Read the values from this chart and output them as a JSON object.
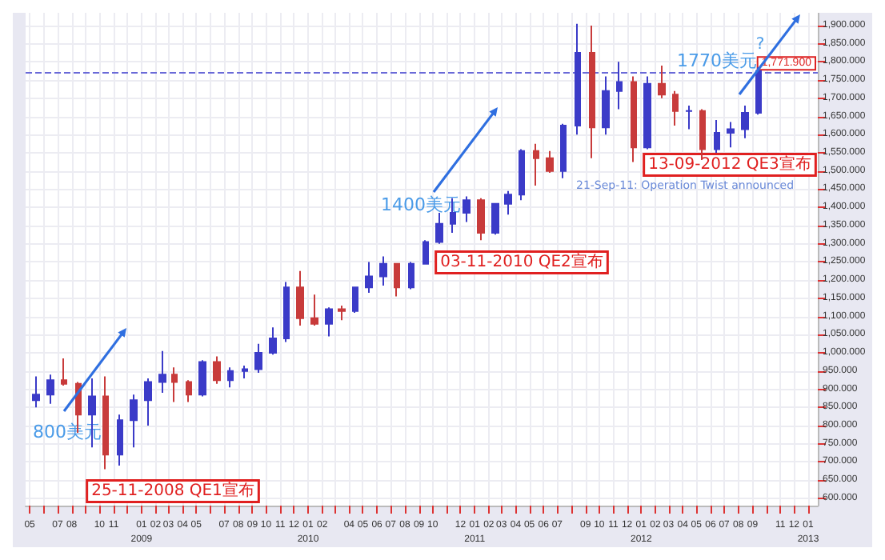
{
  "chart_data": {
    "type": "candlestick",
    "x": [
      "2008-05-15",
      "2008-06-15",
      "2008-07-15",
      "2008-08-15",
      "2008-09-15",
      "2008-10-15",
      "2008-11-15",
      "2008-12-15",
      "2009-01-15",
      "2009-02-15",
      "2009-03-15",
      "2009-04-15",
      "2009-05-15",
      "2009-06-15",
      "2009-07-15",
      "2009-08-15",
      "2009-09-15",
      "2009-10-15",
      "2009-11-15",
      "2009-12-15",
      "2010-01-15",
      "2010-02-15",
      "2010-03-15",
      "2010-04-15",
      "2010-05-15",
      "2010-06-15",
      "2010-07-15",
      "2010-08-15",
      "2010-09-15",
      "2010-10-15",
      "2010-11-15",
      "2010-12-15",
      "2011-01-15",
      "2011-02-15",
      "2011-03-15",
      "2011-04-15",
      "2011-05-15",
      "2011-06-15",
      "2011-07-15",
      "2011-08-15",
      "2011-09-15",
      "2011-10-15",
      "2011-11-15",
      "2011-12-15",
      "2012-01-15",
      "2012-02-15",
      "2012-03-15",
      "2012-04-15",
      "2012-05-15",
      "2012-06-15",
      "2012-07-15",
      "2012-08-15",
      "2012-09-15"
    ],
    "ohlc": [
      [
        870,
        935,
        850,
        885
      ],
      [
        885,
        940,
        860,
        925
      ],
      [
        925,
        985,
        910,
        915
      ],
      [
        915,
        920,
        780,
        830
      ],
      [
        830,
        930,
        740,
        880
      ],
      [
        880,
        935,
        680,
        720
      ],
      [
        720,
        830,
        690,
        815
      ],
      [
        815,
        885,
        740,
        870
      ],
      [
        870,
        930,
        800,
        920
      ],
      [
        920,
        1005,
        890,
        940
      ],
      [
        940,
        960,
        865,
        920
      ],
      [
        920,
        925,
        865,
        885
      ],
      [
        885,
        980,
        880,
        975
      ],
      [
        975,
        990,
        915,
        925
      ],
      [
        925,
        960,
        905,
        950
      ],
      [
        950,
        965,
        930,
        955
      ],
      [
        955,
        1025,
        945,
        1000
      ],
      [
        1000,
        1070,
        995,
        1040
      ],
      [
        1040,
        1195,
        1030,
        1180
      ],
      [
        1180,
        1225,
        1075,
        1095
      ],
      [
        1095,
        1160,
        1075,
        1080
      ],
      [
        1080,
        1125,
        1045,
        1120
      ],
      [
        1120,
        1130,
        1090,
        1115
      ],
      [
        1115,
        1180,
        1110,
        1180
      ],
      [
        1180,
        1250,
        1165,
        1210
      ],
      [
        1210,
        1265,
        1185,
        1245
      ],
      [
        1245,
        1245,
        1155,
        1180
      ],
      [
        1180,
        1250,
        1175,
        1245
      ],
      [
        1245,
        1310,
        1245,
        1305
      ],
      [
        1305,
        1385,
        1300,
        1355
      ],
      [
        1355,
        1425,
        1330,
        1385
      ],
      [
        1385,
        1430,
        1360,
        1420
      ],
      [
        1420,
        1425,
        1310,
        1330
      ],
      [
        1330,
        1410,
        1325,
        1410
      ],
      [
        1410,
        1445,
        1380,
        1435
      ],
      [
        1435,
        1560,
        1420,
        1555
      ],
      [
        1555,
        1575,
        1460,
        1535
      ],
      [
        1535,
        1555,
        1495,
        1500
      ],
      [
        1500,
        1630,
        1480,
        1625
      ],
      [
        1625,
        1905,
        1600,
        1825
      ],
      [
        1825,
        1900,
        1535,
        1620
      ],
      [
        1620,
        1760,
        1600,
        1720
      ],
      [
        1720,
        1800,
        1670,
        1745
      ],
      [
        1745,
        1760,
        1525,
        1565
      ],
      [
        1565,
        1760,
        1560,
        1740
      ],
      [
        1740,
        1790,
        1700,
        1710
      ],
      [
        1710,
        1720,
        1625,
        1665
      ],
      [
        1665,
        1680,
        1615,
        1665
      ],
      [
        1665,
        1670,
        1530,
        1560
      ],
      [
        1560,
        1640,
        1550,
        1605
      ],
      [
        1605,
        1635,
        1565,
        1615
      ],
      [
        1615,
        1680,
        1590,
        1660
      ],
      [
        1660,
        1785,
        1655,
        1775
      ]
    ],
    "colors": [
      "#3b3bc8",
      "#3b3bc8",
      "#c83b3b",
      "#c83b3b",
      "#3b3bc8",
      "#c83b3b",
      "#3b3bc8",
      "#3b3bc8",
      "#3b3bc8",
      "#3b3bc8",
      "#c83b3b",
      "#c83b3b",
      "#3b3bc8",
      "#c83b3b",
      "#3b3bc8",
      "#3b3bc8",
      "#3b3bc8",
      "#3b3bc8",
      "#3b3bc8",
      "#c83b3b",
      "#c83b3b",
      "#3b3bc8",
      "#c83b3b",
      "#3b3bc8",
      "#3b3bc8",
      "#3b3bc8",
      "#c83b3b",
      "#3b3bc8",
      "#3b3bc8",
      "#3b3bc8",
      "#3b3bc8",
      "#3b3bc8",
      "#c83b3b",
      "#3b3bc8",
      "#3b3bc8",
      "#3b3bc8",
      "#c83b3b",
      "#c83b3b",
      "#3b3bc8",
      "#3b3bc8",
      "#c83b3b",
      "#3b3bc8",
      "#3b3bc8",
      "#c83b3b",
      "#3b3bc8",
      "#c83b3b",
      "#c83b3b",
      "#3b3bc8",
      "#c83b3b",
      "#3b3bc8",
      "#3b3bc8",
      "#3b3bc8",
      "#3b3bc8"
    ],
    "xlim": [
      "2008-04-22",
      "2013-01-22"
    ],
    "xticks": [
      {
        "value": "2008-05-01",
        "label": "05"
      },
      {
        "value": "2008-06-01",
        "label": null
      },
      {
        "value": "2008-07-01",
        "label": "07"
      },
      {
        "value": "2008-08-01",
        "label": "08"
      },
      {
        "value": "2008-09-01",
        "label": null
      },
      {
        "value": "2008-10-01",
        "label": "10"
      },
      {
        "value": "2008-11-01",
        "label": "11"
      },
      {
        "value": "2008-12-01",
        "label": null
      },
      {
        "value": "2009-01-01",
        "label": "01\n2009"
      },
      {
        "value": "2009-02-01",
        "label": "02"
      },
      {
        "value": "2009-03-01",
        "label": "03"
      },
      {
        "value": "2009-04-01",
        "label": "04"
      },
      {
        "value": "2009-05-01",
        "label": "05"
      },
      {
        "value": "2009-06-01",
        "label": null
      },
      {
        "value": "2009-07-01",
        "label": "07"
      },
      {
        "value": "2009-08-01",
        "label": "08"
      },
      {
        "value": "2009-09-01",
        "label": "09"
      },
      {
        "value": "2009-10-01",
        "label": "10"
      },
      {
        "value": "2009-11-01",
        "label": "11"
      },
      {
        "value": "2009-12-01",
        "label": "12"
      },
      {
        "value": "2010-01-01",
        "label": "01\n2010"
      },
      {
        "value": "2010-02-01",
        "label": "02"
      },
      {
        "value": "2010-03-01",
        "label": null
      },
      {
        "value": "2010-04-01",
        "label": "04"
      },
      {
        "value": "2010-05-01",
        "label": "05"
      },
      {
        "value": "2010-06-01",
        "label": "06"
      },
      {
        "value": "2010-07-01",
        "label": "07"
      },
      {
        "value": "2010-08-01",
        "label": "08"
      },
      {
        "value": "2010-09-01",
        "label": "09"
      },
      {
        "value": "2010-10-01",
        "label": "10"
      },
      {
        "value": "2010-11-01",
        "label": null
      },
      {
        "value": "2010-12-01",
        "label": "12"
      },
      {
        "value": "2011-01-01",
        "label": "01\n2011"
      },
      {
        "value": "2011-02-01",
        "label": "02"
      },
      {
        "value": "2011-03-01",
        "label": "03"
      },
      {
        "value": "2011-04-01",
        "label": "04"
      },
      {
        "value": "2011-05-01",
        "label": "05"
      },
      {
        "value": "2011-06-01",
        "label": "06"
      },
      {
        "value": "2011-07-01",
        "label": "07"
      },
      {
        "value": "2011-08-01",
        "label": null
      },
      {
        "value": "2011-09-01",
        "label": "09"
      },
      {
        "value": "2011-10-01",
        "label": "10"
      },
      {
        "value": "2011-11-01",
        "label": "11"
      },
      {
        "value": "2011-12-01",
        "label": "12"
      },
      {
        "value": "2012-01-01",
        "label": "01\n2012"
      },
      {
        "value": "2012-02-01",
        "label": "02"
      },
      {
        "value": "2012-03-01",
        "label": "03"
      },
      {
        "value": "2012-04-01",
        "label": "04"
      },
      {
        "value": "2012-05-01",
        "label": "05"
      },
      {
        "value": "2012-06-01",
        "label": "06"
      },
      {
        "value": "2012-07-01",
        "label": "07"
      },
      {
        "value": "2012-08-01",
        "label": "08"
      },
      {
        "value": "2012-09-01",
        "label": "09"
      },
      {
        "value": "2012-10-01",
        "label": null
      },
      {
        "value": "2012-11-01",
        "label": "11"
      },
      {
        "value": "2012-12-01",
        "label": "12"
      },
      {
        "value": "2013-01-01",
        "label": "01\n2013"
      }
    ],
    "ylim": [
      580,
      1935
    ],
    "yticks": [
      {
        "value": 600,
        "label": "600.000"
      },
      {
        "value": 650,
        "label": "650.000"
      },
      {
        "value": 700,
        "label": "700.000"
      },
      {
        "value": 750,
        "label": "750.000"
      },
      {
        "value": 800,
        "label": "800.000"
      },
      {
        "value": 850,
        "label": "850.000"
      },
      {
        "value": 900,
        "label": "900.000"
      },
      {
        "value": 950,
        "label": "950.000"
      },
      {
        "value": 1000,
        "label": "1,000.000"
      },
      {
        "value": 1050,
        "label": "1,050.000"
      },
      {
        "value": 1100,
        "label": "1,100.000"
      },
      {
        "value": 1150,
        "label": "1,150.000"
      },
      {
        "value": 1200,
        "label": "1,200.000"
      },
      {
        "value": 1250,
        "label": "1,250.000"
      },
      {
        "value": 1300,
        "label": "1,300.000"
      },
      {
        "value": 1350,
        "label": "1,350.000"
      },
      {
        "value": 1400,
        "label": "1,400.000"
      },
      {
        "value": 1450,
        "label": "1,450.000"
      },
      {
        "value": 1500,
        "label": "1,500.000"
      },
      {
        "value": 1550,
        "label": "1,550.000"
      },
      {
        "value": 1600,
        "label": "1,600.000"
      },
      {
        "value": 1650,
        "label": "1,650.000"
      },
      {
        "value": 1700,
        "label": "1,700.000"
      },
      {
        "value": 1750,
        "label": "1,750.000"
      },
      {
        "value": 1800,
        "label": "1,800.000"
      },
      {
        "value": 1850,
        "label": "1,850.000"
      },
      {
        "value": 1900,
        "label": "1,900.000"
      }
    ],
    "grid": true,
    "ref_lines": [
      {
        "axis": "y",
        "value": 1771.9,
        "label": "1,771.900",
        "color": "#6a6ad8",
        "line_style": "dashed"
      }
    ],
    "annotations": [
      "800美元",
      "25-11-2008 QE1宣布",
      "1400美元",
      "03-11-2010 QE2宣布",
      "1770美元",
      "?",
      "13-09-2012 QE3宣布",
      "21-Sep-11: Operation Twist announced"
    ]
  }
}
